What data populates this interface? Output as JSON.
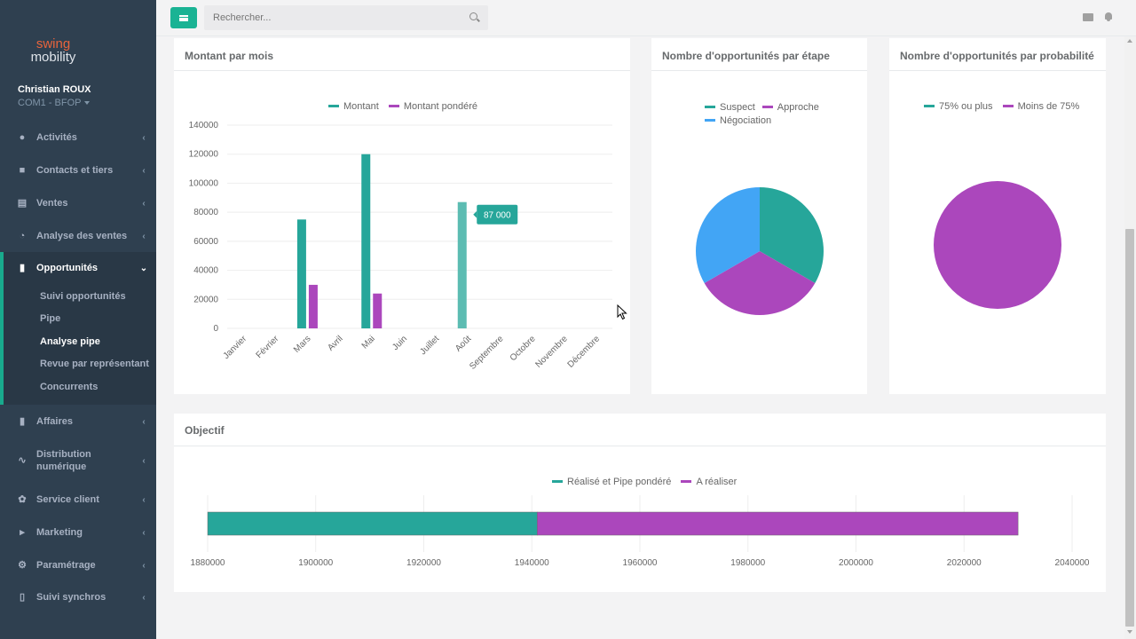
{
  "app": {
    "logo_line1": "swing",
    "logo_line2": "mobility",
    "accent_color": "#1ab394",
    "sidebar_color": "#2f4050"
  },
  "user": {
    "name": "Christian ROUX",
    "role": "COM1 - BFOP"
  },
  "search": {
    "placeholder": "Rechercher..."
  },
  "sidebar": {
    "items": [
      {
        "label": "Activités",
        "icon": "users-icon"
      },
      {
        "label": "Contacts et tiers",
        "icon": "address-book-icon"
      },
      {
        "label": "Ventes",
        "icon": "money-icon"
      },
      {
        "label": "Analyse des ventes",
        "icon": "pie-chart-icon"
      },
      {
        "label": "Opportunités",
        "icon": "briefcase-icon"
      },
      {
        "label": "Affaires",
        "icon": "suitcase-icon"
      },
      {
        "label": "Distribution numérique",
        "icon": "line-chart-icon"
      },
      {
        "label": "Service client",
        "icon": "wrench-icon"
      },
      {
        "label": "Marketing",
        "icon": "bullhorn-icon"
      },
      {
        "label": "Paramétrage",
        "icon": "gear-icon"
      },
      {
        "label": "Suivi synchros",
        "icon": "bar-chart-icon"
      }
    ],
    "sub_items": [
      {
        "label": "Suivi opportunités"
      },
      {
        "label": "Pipe"
      },
      {
        "label": "Analyse pipe"
      },
      {
        "label": "Revue par représentant"
      },
      {
        "label": "Concurrents"
      }
    ]
  },
  "panels": {
    "montant": {
      "title": "Montant par mois"
    },
    "etape": {
      "title": "Nombre d'opportunités par étape"
    },
    "probabilite": {
      "title": "Nombre d'opportunités par probabilité"
    },
    "objectif": {
      "title": "Objectif"
    }
  },
  "chart_data": [
    {
      "type": "bar",
      "title": "Montant par mois",
      "categories": [
        "Janvier",
        "Février",
        "Mars",
        "Avril",
        "Mai",
        "Juin",
        "Juillet",
        "Août",
        "Septembre",
        "Octobre",
        "Novembre",
        "Décembre"
      ],
      "series": [
        {
          "name": "Montant",
          "color": "#26a69a",
          "values": [
            0,
            0,
            75000,
            0,
            120000,
            0,
            0,
            87000,
            0,
            0,
            0,
            0
          ]
        },
        {
          "name": "Montant pondéré",
          "color": "#ab47bc",
          "values": [
            0,
            0,
            30000,
            0,
            24000,
            0,
            0,
            0,
            0,
            0,
            0,
            0
          ]
        }
      ],
      "ylim": [
        0,
        140000
      ],
      "yticks": [
        "0",
        "20000",
        "40000",
        "60000",
        "80000",
        "100000",
        "120000",
        "140000"
      ],
      "tooltip": "87 000",
      "legend": "top",
      "grid": true
    },
    {
      "type": "pie",
      "title": "Nombre d'opportunités par étape",
      "series": [
        {
          "name": "Suspect",
          "color": "#26a69a",
          "value": 1
        },
        {
          "name": "Approche",
          "color": "#ab47bc",
          "value": 1
        },
        {
          "name": "Négociation",
          "color": "#42a5f5",
          "value": 1
        }
      ],
      "legend": "top"
    },
    {
      "type": "pie",
      "title": "Nombre d'opportunités par probabilité",
      "series": [
        {
          "name": "75% ou plus",
          "color": "#26a69a",
          "value": 0
        },
        {
          "name": "Moins de 75%",
          "color": "#ab47bc",
          "value": 1
        }
      ],
      "legend": "top"
    },
    {
      "type": "bar",
      "orientation": "horizontal",
      "stacked": true,
      "title": "Objectif",
      "series": [
        {
          "name": "Réalisé et Pipe pondéré",
          "color": "#26a69a",
          "range": [
            1880000,
            1941000
          ]
        },
        {
          "name": "A réaliser",
          "color": "#ab47bc",
          "range": [
            1941000,
            2030000
          ]
        }
      ],
      "xlim": [
        1880000,
        2040000
      ],
      "xticks": [
        "1880000",
        "1900000",
        "1920000",
        "1940000",
        "1960000",
        "1980000",
        "2000000",
        "2020000",
        "2040000"
      ],
      "legend": "top",
      "grid": true
    }
  ]
}
